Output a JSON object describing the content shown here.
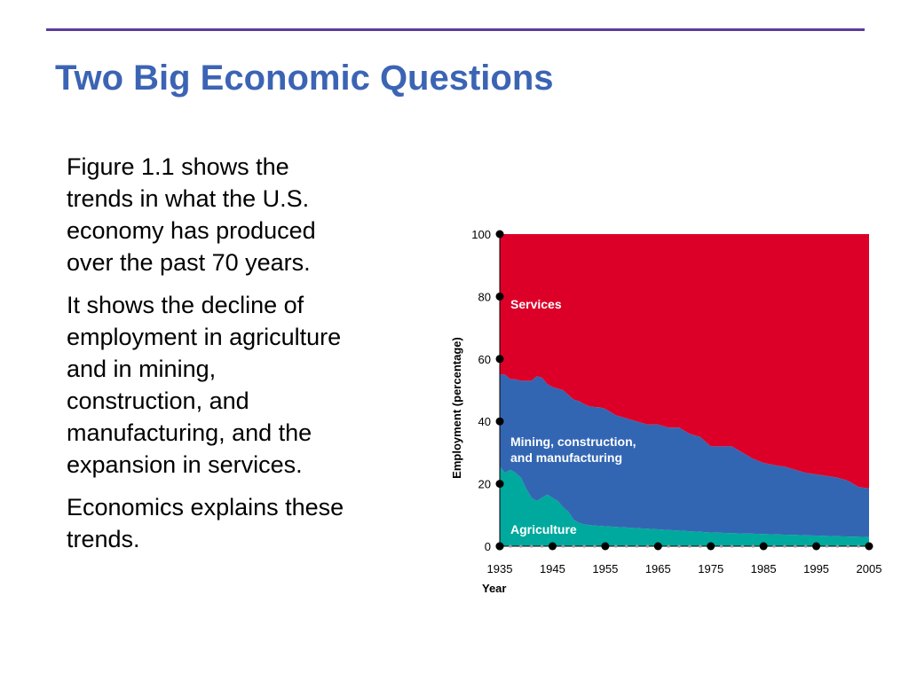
{
  "slide": {
    "title": "Two Big Economic Questions",
    "paragraphs": [
      [
        "Figure 1.1 shows the",
        "trends in what the U.S.",
        "economy has produced",
        "over the past 70 years."
      ],
      [
        "It shows the decline of",
        "employment in agriculture",
        "and in mining,",
        "construction, and",
        "manufacturing, and the",
        "expansion in services."
      ],
      [
        "Economics explains these",
        "trends."
      ]
    ],
    "colors": {
      "title": "#3c64b4",
      "rule": "#5b3c9c"
    }
  },
  "chart_data": {
    "type": "area",
    "stacked": true,
    "xlabel": "Year",
    "ylabel": "Employment (percentage)",
    "xlim": [
      1935,
      2005
    ],
    "ylim": [
      0,
      100
    ],
    "x_ticks": [
      1935,
      1945,
      1955,
      1965,
      1975,
      1985,
      1995,
      2005
    ],
    "y_ticks": [
      0,
      20,
      40,
      60,
      80,
      100
    ],
    "x": [
      1935,
      1936,
      1937,
      1938,
      1939,
      1940,
      1941,
      1942,
      1943,
      1944,
      1945,
      1946,
      1947,
      1948,
      1949,
      1950,
      1951,
      1952,
      1953,
      1954,
      1955,
      1957,
      1959,
      1961,
      1963,
      1965,
      1967,
      1969,
      1971,
      1973,
      1975,
      1977,
      1979,
      1981,
      1983,
      1985,
      1987,
      1989,
      1991,
      1993,
      1995,
      1997,
      1999,
      2001,
      2003,
      2005
    ],
    "series": [
      {
        "name": "Agriculture",
        "color": "#00a99d",
        "values": [
          25.5,
          23.5,
          24.5,
          23.5,
          22.0,
          18.5,
          15.5,
          14.5,
          15.5,
          16.5,
          15.5,
          14.5,
          12.5,
          11.0,
          8.5,
          7.5,
          7.0,
          6.8,
          6.6,
          6.5,
          6.4,
          6.2,
          6.0,
          5.8,
          5.6,
          5.4,
          5.2,
          5.0,
          4.8,
          4.6,
          4.4,
          4.3,
          4.2,
          4.1,
          4.0,
          3.9,
          3.8,
          3.7,
          3.6,
          3.5,
          3.4,
          3.3,
          3.2,
          3.1,
          3.0,
          2.9
        ]
      },
      {
        "name": "Mining, construction, and manufacturing",
        "color": "#3366b2",
        "values": [
          29.5,
          31.5,
          29.0,
          30.0,
          31.0,
          34.5,
          37.5,
          40.0,
          38.5,
          35.5,
          35.5,
          36.0,
          37.5,
          37.5,
          38.5,
          39.0,
          38.5,
          38.0,
          38.0,
          38.0,
          37.6,
          35.8,
          35.0,
          34.2,
          33.4,
          33.6,
          32.8,
          33.0,
          31.2,
          30.4,
          27.6,
          27.7,
          27.8,
          25.9,
          24.0,
          22.8,
          22.2,
          21.8,
          20.9,
          20.0,
          19.6,
          19.2,
          18.8,
          17.9,
          16.0,
          15.6
        ]
      },
      {
        "name": "Services",
        "color": "#dc0028",
        "values": [
          45.0,
          45.0,
          46.5,
          46.5,
          47.0,
          47.0,
          47.0,
          45.5,
          46.0,
          48.0,
          49.0,
          49.5,
          50.0,
          51.5,
          53.0,
          53.5,
          54.5,
          55.2,
          55.4,
          55.5,
          56.0,
          58.0,
          59.0,
          60.0,
          61.0,
          61.0,
          62.0,
          62.0,
          64.0,
          65.0,
          68.0,
          68.0,
          68.0,
          70.0,
          72.0,
          73.3,
          74.0,
          74.5,
          75.5,
          76.5,
          77.0,
          77.5,
          78.0,
          79.0,
          81.0,
          81.5
        ]
      }
    ],
    "region_labels": [
      {
        "lines": [
          "Services"
        ]
      },
      {
        "lines": [
          "Mining, construction,",
          "and manufacturing"
        ]
      },
      {
        "lines": [
          "Agriculture"
        ]
      }
    ]
  }
}
